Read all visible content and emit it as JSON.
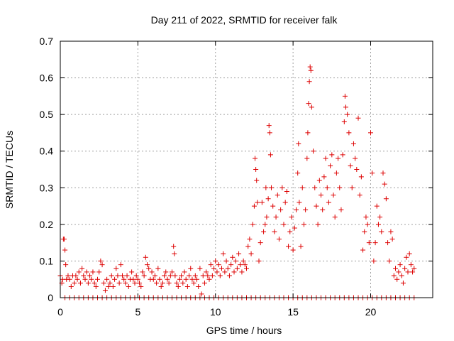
{
  "chart_data": {
    "type": "scatter",
    "title": "Day 211 of 2022, SRMTID for receiver falk",
    "xlabel": "GPS time / hours",
    "ylabel": "SRMTID / TECUs",
    "xlim": [
      0,
      24
    ],
    "ylim": [
      0,
      0.7
    ],
    "grid": true,
    "marker": "+",
    "color": "#dd0000",
    "x_ticks": [
      0,
      5,
      10,
      15,
      20
    ],
    "x_tick_labels": [
      "0",
      "5",
      "10",
      "15",
      "20"
    ],
    "y_ticks": [
      0,
      0.1,
      0.2,
      0.3,
      0.4,
      0.5,
      0.6,
      0.7
    ],
    "y_tick_labels": [
      "0",
      "0.1",
      "0.2",
      "0.3",
      "0.4",
      "0.5",
      "0.6",
      "0.7"
    ],
    "series": [
      {
        "name": "SRMTID",
        "points": [
          [
            0.0,
            0.06
          ],
          [
            0.1,
            0.04
          ],
          [
            0.15,
            0.05
          ],
          [
            0.2,
            0.16
          ],
          [
            0.25,
            0.16
          ],
          [
            0.3,
            0.13
          ],
          [
            0.35,
            0.09
          ],
          [
            0.4,
            0.05
          ],
          [
            0.5,
            0.06
          ],
          [
            0.6,
            0.05
          ],
          [
            0.7,
            0.03
          ],
          [
            0.8,
            0.06
          ],
          [
            0.9,
            0.04
          ],
          [
            1.0,
            0.06
          ],
          [
            1.1,
            0.05
          ],
          [
            1.2,
            0.07
          ],
          [
            1.3,
            0.04
          ],
          [
            1.4,
            0.08
          ],
          [
            1.5,
            0.06
          ],
          [
            1.6,
            0.05
          ],
          [
            1.7,
            0.07
          ],
          [
            1.8,
            0.04
          ],
          [
            1.9,
            0.06
          ],
          [
            2.0,
            0.05
          ],
          [
            2.1,
            0.07
          ],
          [
            2.2,
            0.04
          ],
          [
            2.3,
            0.03
          ],
          [
            2.4,
            0.05
          ],
          [
            2.5,
            0.07
          ],
          [
            2.6,
            0.1
          ],
          [
            2.7,
            0.09
          ],
          [
            2.8,
            0.04
          ],
          [
            2.9,
            0.02
          ],
          [
            3.0,
            0.05
          ],
          [
            3.1,
            0.03
          ],
          [
            3.2,
            0.04
          ],
          [
            3.3,
            0.06
          ],
          [
            3.4,
            0.03
          ],
          [
            3.5,
            0.05
          ],
          [
            3.6,
            0.08
          ],
          [
            3.7,
            0.06
          ],
          [
            3.8,
            0.04
          ],
          [
            3.9,
            0.09
          ],
          [
            4.0,
            0.06
          ],
          [
            4.1,
            0.05
          ],
          [
            4.2,
            0.04
          ],
          [
            4.3,
            0.06
          ],
          [
            4.4,
            0.03
          ],
          [
            4.5,
            0.05
          ],
          [
            4.6,
            0.07
          ],
          [
            4.7,
            0.05
          ],
          [
            4.8,
            0.04
          ],
          [
            4.9,
            0.06
          ],
          [
            5.0,
            0.05
          ],
          [
            5.1,
            0.04
          ],
          [
            5.2,
            0.03
          ],
          [
            5.3,
            0.07
          ],
          [
            5.4,
            0.06
          ],
          [
            5.5,
            0.11
          ],
          [
            5.6,
            0.09
          ],
          [
            5.7,
            0.08
          ],
          [
            5.8,
            0.05
          ],
          [
            5.9,
            0.07
          ],
          [
            6.0,
            0.05
          ],
          [
            6.1,
            0.06
          ],
          [
            6.2,
            0.04
          ],
          [
            6.3,
            0.08
          ],
          [
            6.4,
            0.05
          ],
          [
            6.5,
            0.03
          ],
          [
            6.6,
            0.04
          ],
          [
            6.7,
            0.06
          ],
          [
            6.8,
            0.07
          ],
          [
            6.9,
            0.05
          ],
          [
            7.0,
            0.04
          ],
          [
            7.1,
            0.06
          ],
          [
            7.2,
            0.07
          ],
          [
            7.3,
            0.14
          ],
          [
            7.35,
            0.12
          ],
          [
            7.4,
            0.06
          ],
          [
            7.5,
            0.04
          ],
          [
            7.6,
            0.03
          ],
          [
            7.7,
            0.05
          ],
          [
            7.8,
            0.06
          ],
          [
            7.9,
            0.04
          ],
          [
            8.0,
            0.07
          ],
          [
            8.1,
            0.05
          ],
          [
            8.2,
            0.03
          ],
          [
            8.3,
            0.06
          ],
          [
            8.4,
            0.08
          ],
          [
            8.5,
            0.05
          ],
          [
            8.6,
            0.04
          ],
          [
            8.7,
            0.06
          ],
          [
            8.8,
            0.05
          ],
          [
            8.9,
            0.03
          ],
          [
            9.0,
            0.08
          ],
          [
            9.1,
            0.01
          ],
          [
            9.2,
            0.06
          ],
          [
            9.3,
            0.04
          ],
          [
            9.4,
            0.07
          ],
          [
            9.5,
            0.06
          ],
          [
            9.6,
            0.05
          ],
          [
            9.7,
            0.09
          ],
          [
            9.8,
            0.06
          ],
          [
            9.9,
            0.08
          ],
          [
            10.0,
            0.1
          ],
          [
            10.1,
            0.07
          ],
          [
            10.2,
            0.09
          ],
          [
            10.3,
            0.06
          ],
          [
            10.4,
            0.08
          ],
          [
            10.5,
            0.12
          ],
          [
            10.6,
            0.07
          ],
          [
            10.7,
            0.1
          ],
          [
            10.8,
            0.08
          ],
          [
            10.9,
            0.06
          ],
          [
            11.0,
            0.09
          ],
          [
            11.1,
            0.11
          ],
          [
            11.2,
            0.07
          ],
          [
            11.3,
            0.1
          ],
          [
            11.4,
            0.08
          ],
          [
            11.5,
            0.12
          ],
          [
            11.6,
            0.09
          ],
          [
            11.7,
            0.07
          ],
          [
            11.8,
            0.1
          ],
          [
            11.9,
            0.09
          ],
          [
            12.0,
            0.08
          ],
          [
            12.1,
            0.14
          ],
          [
            12.2,
            0.16
          ],
          [
            12.3,
            0.12
          ],
          [
            12.4,
            0.2
          ],
          [
            12.5,
            0.25
          ],
          [
            12.55,
            0.38
          ],
          [
            12.6,
            0.35
          ],
          [
            12.65,
            0.32
          ],
          [
            12.7,
            0.26
          ],
          [
            12.8,
            0.1
          ],
          [
            12.9,
            0.15
          ],
          [
            13.0,
            0.26
          ],
          [
            13.1,
            0.18
          ],
          [
            13.2,
            0.2
          ],
          [
            13.25,
            0.3
          ],
          [
            13.3,
            0.22
          ],
          [
            13.4,
            0.27
          ],
          [
            13.45,
            0.47
          ],
          [
            13.5,
            0.45
          ],
          [
            13.55,
            0.39
          ],
          [
            13.6,
            0.3
          ],
          [
            13.7,
            0.25
          ],
          [
            13.8,
            0.18
          ],
          [
            13.9,
            0.22
          ],
          [
            14.0,
            0.28
          ],
          [
            14.1,
            0.16
          ],
          [
            14.2,
            0.24
          ],
          [
            14.3,
            0.3
          ],
          [
            14.4,
            0.2
          ],
          [
            14.5,
            0.26
          ],
          [
            14.6,
            0.29
          ],
          [
            14.7,
            0.14
          ],
          [
            14.8,
            0.18
          ],
          [
            14.9,
            0.22
          ],
          [
            15.0,
            0.13
          ],
          [
            15.1,
            0.19
          ],
          [
            15.2,
            0.24
          ],
          [
            15.3,
            0.34
          ],
          [
            15.35,
            0.42
          ],
          [
            15.4,
            0.26
          ],
          [
            15.5,
            0.14
          ],
          [
            15.6,
            0.3
          ],
          [
            15.7,
            0.2
          ],
          [
            15.8,
            0.24
          ],
          [
            15.9,
            0.38
          ],
          [
            15.95,
            0.45
          ],
          [
            16.0,
            0.53
          ],
          [
            16.05,
            0.59
          ],
          [
            16.1,
            0.63
          ],
          [
            16.15,
            0.62
          ],
          [
            16.2,
            0.52
          ],
          [
            16.3,
            0.4
          ],
          [
            16.4,
            0.3
          ],
          [
            16.5,
            0.25
          ],
          [
            16.6,
            0.2
          ],
          [
            16.7,
            0.32
          ],
          [
            16.8,
            0.28
          ],
          [
            16.9,
            0.24
          ],
          [
            17.0,
            0.33
          ],
          [
            17.1,
            0.38
          ],
          [
            17.2,
            0.3
          ],
          [
            17.3,
            0.26
          ],
          [
            17.4,
            0.36
          ],
          [
            17.5,
            0.39
          ],
          [
            17.6,
            0.28
          ],
          [
            17.7,
            0.22
          ],
          [
            17.8,
            0.34
          ],
          [
            17.9,
            0.38
          ],
          [
            18.0,
            0.3
          ],
          [
            18.1,
            0.24
          ],
          [
            18.2,
            0.39
          ],
          [
            18.3,
            0.48
          ],
          [
            18.35,
            0.55
          ],
          [
            18.4,
            0.52
          ],
          [
            18.5,
            0.5
          ],
          [
            18.6,
            0.45
          ],
          [
            18.7,
            0.36
          ],
          [
            18.8,
            0.3
          ],
          [
            18.9,
            0.42
          ],
          [
            19.0,
            0.38
          ],
          [
            19.1,
            0.35
          ],
          [
            19.2,
            0.49
          ],
          [
            19.3,
            0.28
          ],
          [
            19.4,
            0.33
          ],
          [
            19.5,
            0.13
          ],
          [
            19.6,
            0.18
          ],
          [
            19.7,
            0.22
          ],
          [
            19.8,
            0.2
          ],
          [
            19.9,
            0.15
          ],
          [
            20.0,
            0.45
          ],
          [
            20.1,
            0.34
          ],
          [
            20.2,
            0.1
          ],
          [
            20.3,
            0.15
          ],
          [
            20.4,
            0.25
          ],
          [
            20.5,
            0.2
          ],
          [
            20.6,
            0.22
          ],
          [
            20.7,
            0.18
          ],
          [
            20.8,
            0.34
          ],
          [
            20.9,
            0.31
          ],
          [
            21.0,
            0.27
          ],
          [
            21.1,
            0.15
          ],
          [
            21.2,
            0.1
          ],
          [
            21.3,
            0.18
          ],
          [
            21.4,
            0.16
          ],
          [
            21.5,
            0.06
          ],
          [
            21.6,
            0.08
          ],
          [
            21.7,
            0.05
          ],
          [
            21.8,
            0.07
          ],
          [
            21.9,
            0.09
          ],
          [
            22.0,
            0.06
          ],
          [
            22.1,
            0.04
          ],
          [
            22.2,
            0.08
          ],
          [
            22.3,
            0.11
          ],
          [
            22.4,
            0.07
          ],
          [
            22.5,
            0.12
          ],
          [
            22.6,
            0.09
          ],
          [
            22.7,
            0.07
          ],
          [
            22.8,
            0.08
          ],
          [
            0.3,
            0.0
          ],
          [
            0.6,
            0.0
          ],
          [
            0.9,
            0.0
          ],
          [
            1.2,
            0.0
          ],
          [
            1.5,
            0.0
          ],
          [
            1.8,
            0.0
          ],
          [
            2.1,
            0.0
          ],
          [
            2.4,
            0.0
          ],
          [
            2.7,
            0.0
          ],
          [
            3.0,
            0.0
          ],
          [
            3.3,
            0.0
          ],
          [
            3.6,
            0.0
          ],
          [
            3.9,
            0.0
          ],
          [
            4.2,
            0.0
          ],
          [
            4.5,
            0.0
          ],
          [
            4.8,
            0.0
          ],
          [
            5.1,
            0.0
          ],
          [
            5.4,
            0.0
          ],
          [
            5.7,
            0.0
          ],
          [
            6.0,
            0.0
          ],
          [
            6.3,
            0.0
          ],
          [
            6.6,
            0.0
          ],
          [
            6.9,
            0.0
          ],
          [
            7.2,
            0.0
          ],
          [
            7.5,
            0.0
          ],
          [
            7.8,
            0.0
          ],
          [
            8.1,
            0.0
          ],
          [
            8.4,
            0.0
          ],
          [
            8.7,
            0.0
          ],
          [
            9.0,
            0.0
          ],
          [
            9.3,
            0.0
          ],
          [
            9.6,
            0.0
          ],
          [
            9.9,
            0.0
          ],
          [
            10.2,
            0.0
          ],
          [
            10.5,
            0.0
          ],
          [
            10.8,
            0.0
          ],
          [
            11.1,
            0.0
          ],
          [
            11.4,
            0.0
          ],
          [
            11.7,
            0.0
          ],
          [
            12.0,
            0.0
          ],
          [
            12.3,
            0.0
          ],
          [
            12.6,
            0.0
          ],
          [
            12.9,
            0.0
          ],
          [
            13.2,
            0.0
          ],
          [
            13.5,
            0.0
          ],
          [
            13.8,
            0.0
          ],
          [
            14.1,
            0.0
          ],
          [
            14.4,
            0.0
          ],
          [
            14.7,
            0.0
          ],
          [
            15.0,
            0.0
          ],
          [
            15.3,
            0.0
          ],
          [
            15.6,
            0.0
          ],
          [
            15.9,
            0.0
          ],
          [
            16.2,
            0.0
          ],
          [
            16.5,
            0.0
          ],
          [
            16.8,
            0.0
          ],
          [
            17.1,
            0.0
          ],
          [
            17.4,
            0.0
          ],
          [
            17.7,
            0.0
          ],
          [
            18.0,
            0.0
          ],
          [
            18.3,
            0.0
          ],
          [
            18.6,
            0.0
          ],
          [
            18.9,
            0.0
          ],
          [
            19.2,
            0.0
          ],
          [
            19.5,
            0.0
          ],
          [
            19.8,
            0.0
          ],
          [
            20.1,
            0.0
          ],
          [
            20.4,
            0.0
          ],
          [
            20.7,
            0.0
          ],
          [
            21.0,
            0.0
          ],
          [
            21.3,
            0.0
          ],
          [
            21.6,
            0.0
          ],
          [
            21.9,
            0.0
          ],
          [
            22.2,
            0.0
          ],
          [
            22.5,
            0.0
          ],
          [
            22.8,
            0.0
          ]
        ]
      }
    ]
  }
}
